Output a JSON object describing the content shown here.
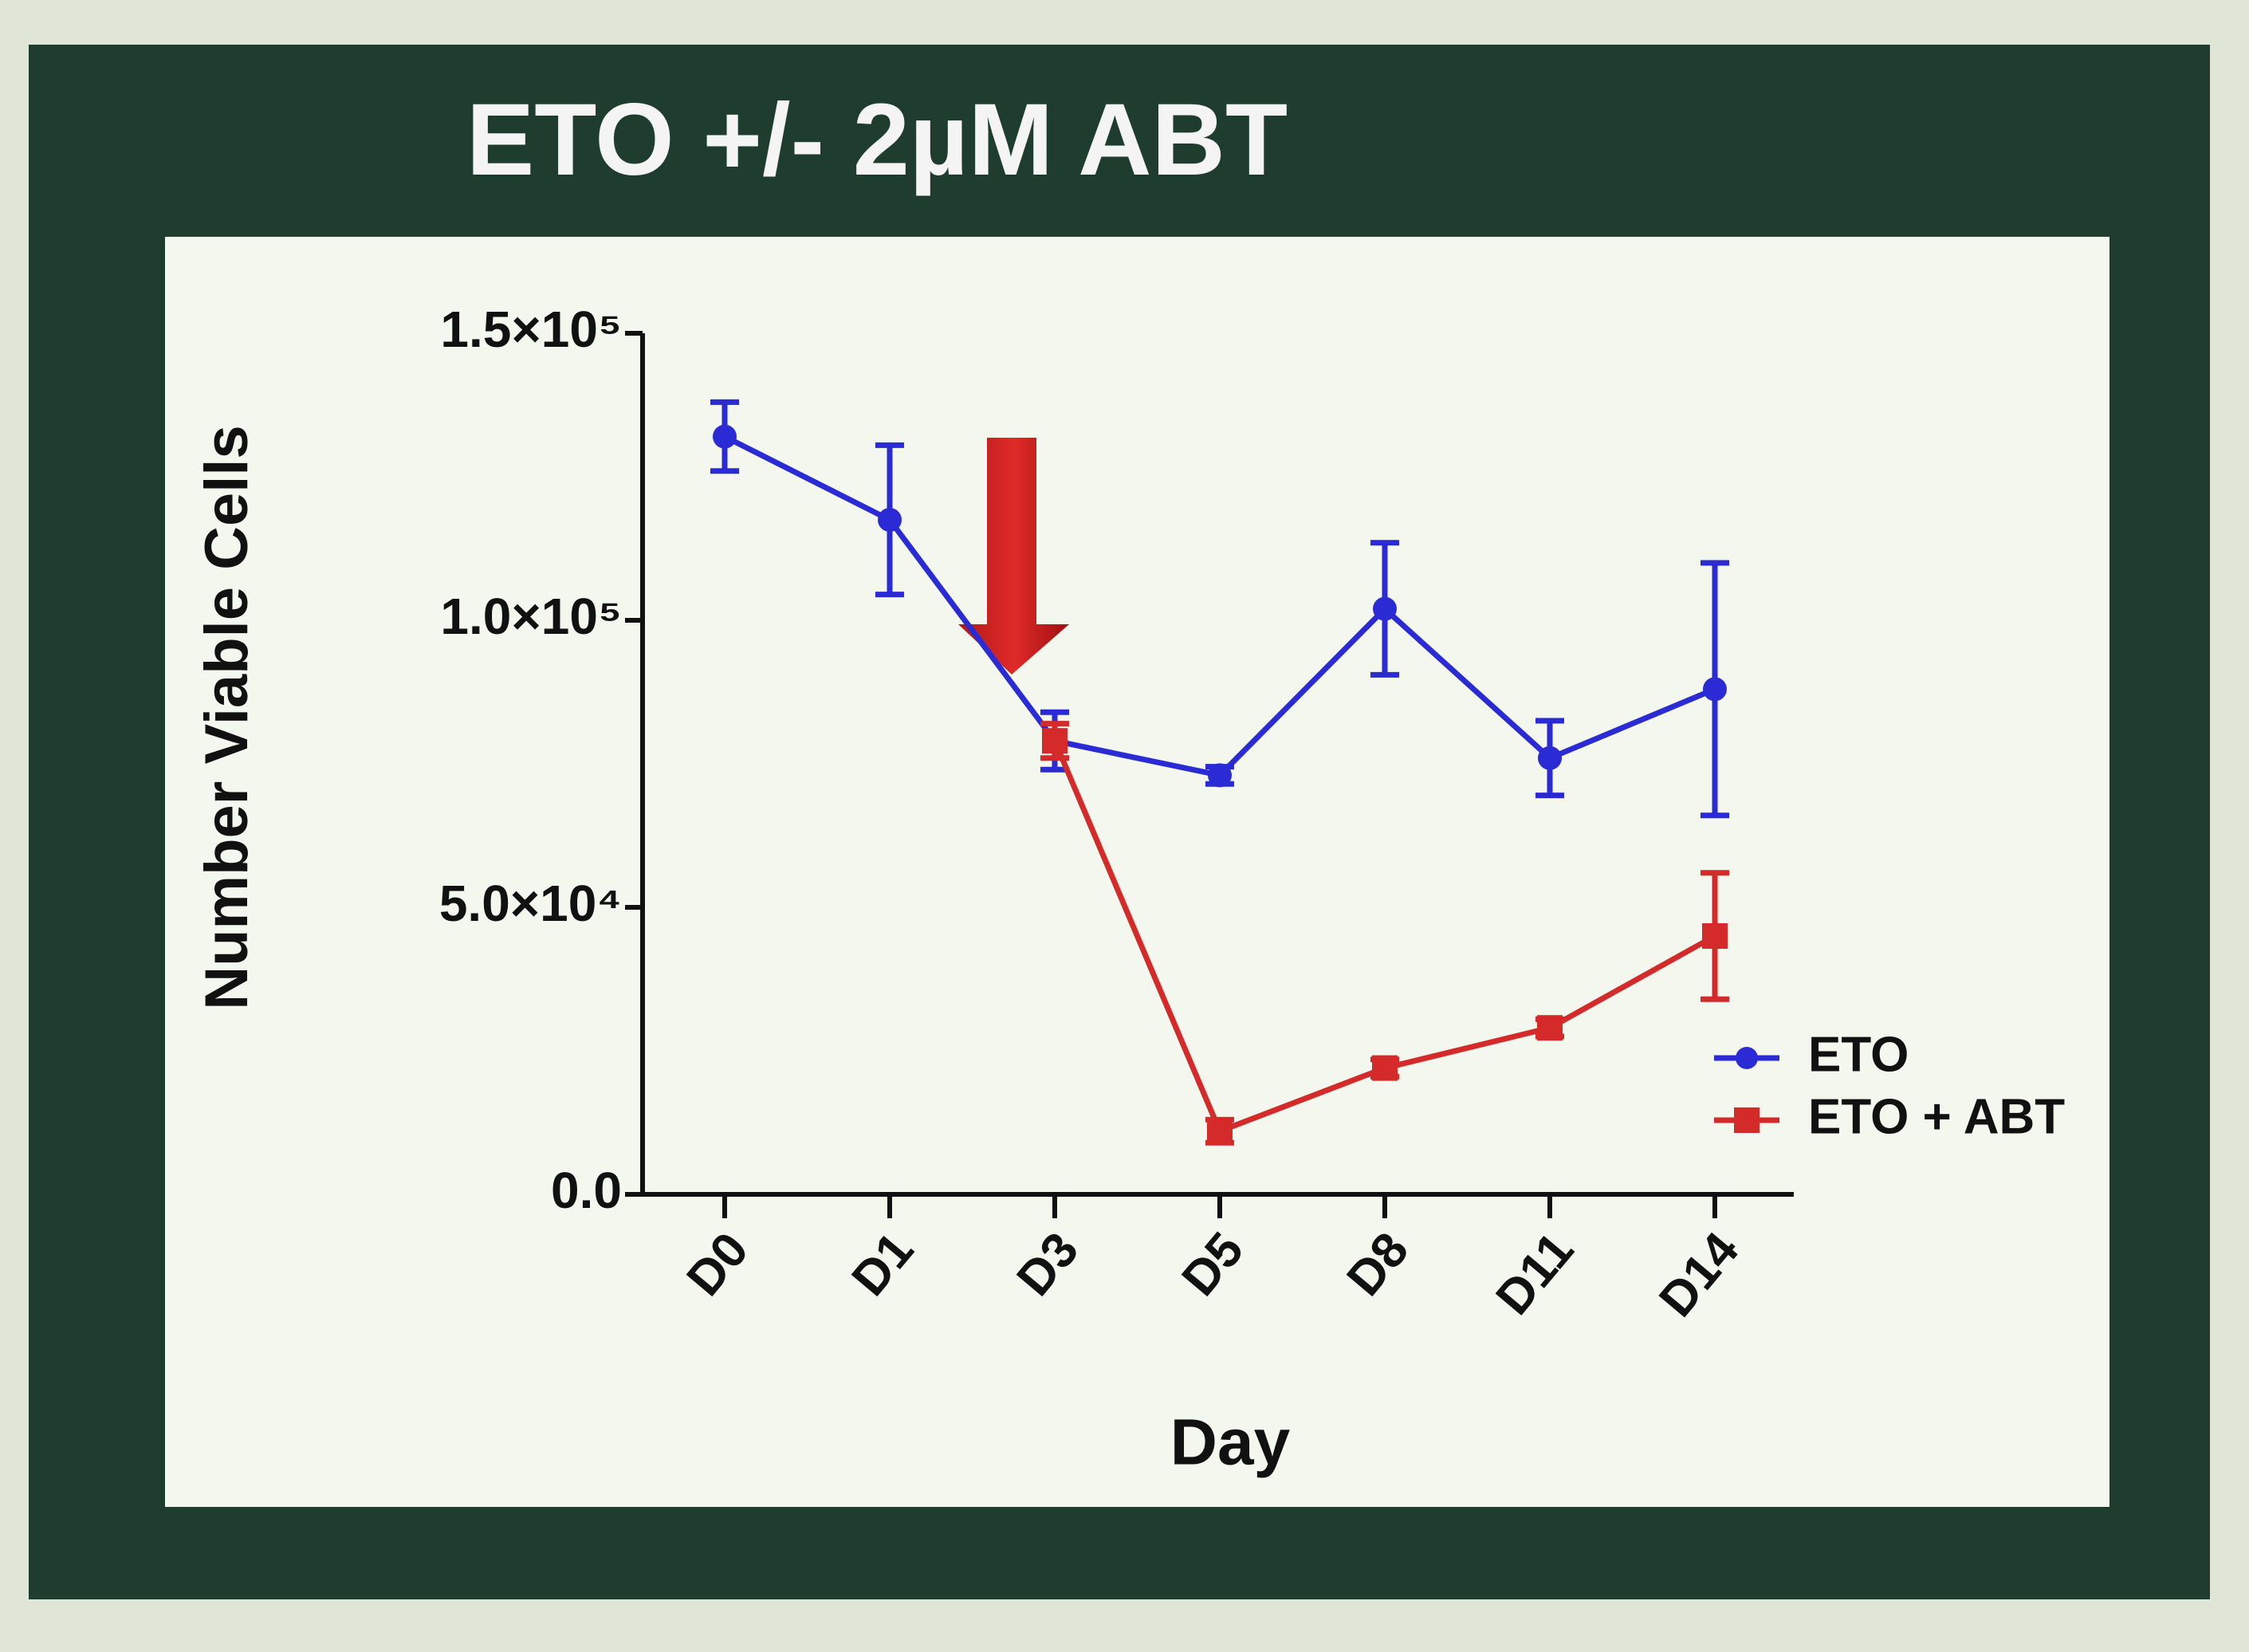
{
  "chart_data": {
    "type": "line",
    "title": "ETO +/- 2µM ABT",
    "x_label": "Day",
    "y_label": "Number Viable Cells",
    "categories": [
      "D0",
      "D1",
      "D3",
      "D5",
      "D8",
      "D11",
      "D14"
    ],
    "series": [
      {
        "name": "ETO",
        "color": "#2b2bd6",
        "marker": "circle",
        "values": [
          132000,
          117500,
          79000,
          73000,
          102000,
          76000,
          88000
        ],
        "errors": [
          6000,
          13000,
          5000,
          1500,
          11500,
          6500,
          22000
        ]
      },
      {
        "name": "ETO + ABT",
        "color": "#d42a2a",
        "marker": "square",
        "values": [
          null,
          null,
          79000,
          11000,
          22000,
          29000,
          45000
        ],
        "errors": [
          null,
          null,
          3000,
          2000,
          1500,
          1500,
          11000
        ]
      }
    ],
    "ylim": [
      0,
      150000
    ],
    "yticks": [
      {
        "value": 0,
        "label": "0.0"
      },
      {
        "value": 50000,
        "label": "5.0×10⁴"
      },
      {
        "value": 100000,
        "label": "1.0×10⁵"
      },
      {
        "value": 150000,
        "label": "1.5×10⁵"
      }
    ],
    "grid": false,
    "legend": "right"
  }
}
